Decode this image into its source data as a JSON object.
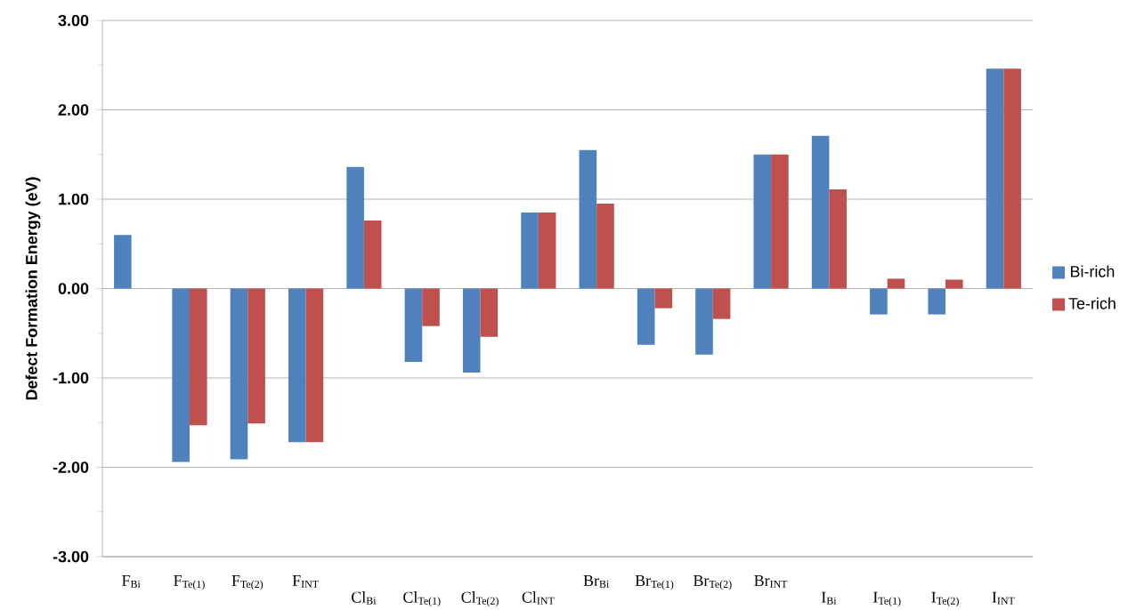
{
  "chart_data": {
    "type": "bar",
    "ylabel": "Defect Formation Energy (eV)",
    "categories": [
      "F$_{Bi}$",
      "F$_{Te(1)}$",
      "F$_{Te(2)}$",
      "F$_{INT}$",
      "Cl$_{Bi}$",
      "Cl$_{Te(1)}$",
      "Cl$_{Te(2)}$",
      "Cl$_{INT}$",
      "Br$_{Bi}$",
      "Br$_{Te(1)}$",
      "Br$_{Te(2)}$",
      "Br$_{INT}$",
      "I$_{Bi}$",
      "I$_{Te(1)}$",
      "I$_{Te(2)}$",
      "I$_{INT}$"
    ],
    "series": [
      {
        "name": "Bi-rich",
        "color": "#4f81bd",
        "values": [
          0.6,
          -1.94,
          -1.91,
          -1.72,
          1.36,
          -0.82,
          -0.94,
          0.85,
          1.55,
          -0.63,
          -0.74,
          1.5,
          1.71,
          -0.29,
          -0.29,
          2.46
        ]
      },
      {
        "name": "Te-rich",
        "color": "#c0504d",
        "values": [
          0.0,
          -1.53,
          -1.51,
          -1.72,
          0.76,
          -0.42,
          -0.54,
          0.85,
          0.95,
          -0.22,
          -0.34,
          1.5,
          1.11,
          0.11,
          0.1,
          2.46
        ]
      }
    ],
    "ylim": [
      -3,
      3
    ],
    "yticks": [
      {
        "value": -3,
        "label": "-3.00"
      },
      {
        "value": -2,
        "label": "-2.00"
      },
      {
        "value": -1,
        "label": "-1.00"
      },
      {
        "value": 0,
        "label": "0.00"
      },
      {
        "value": 1,
        "label": "1.00"
      },
      {
        "value": 2,
        "label": "2.00"
      },
      {
        "value": 3,
        "label": "3.00"
      }
    ],
    "grid": "y",
    "legend": "right"
  }
}
